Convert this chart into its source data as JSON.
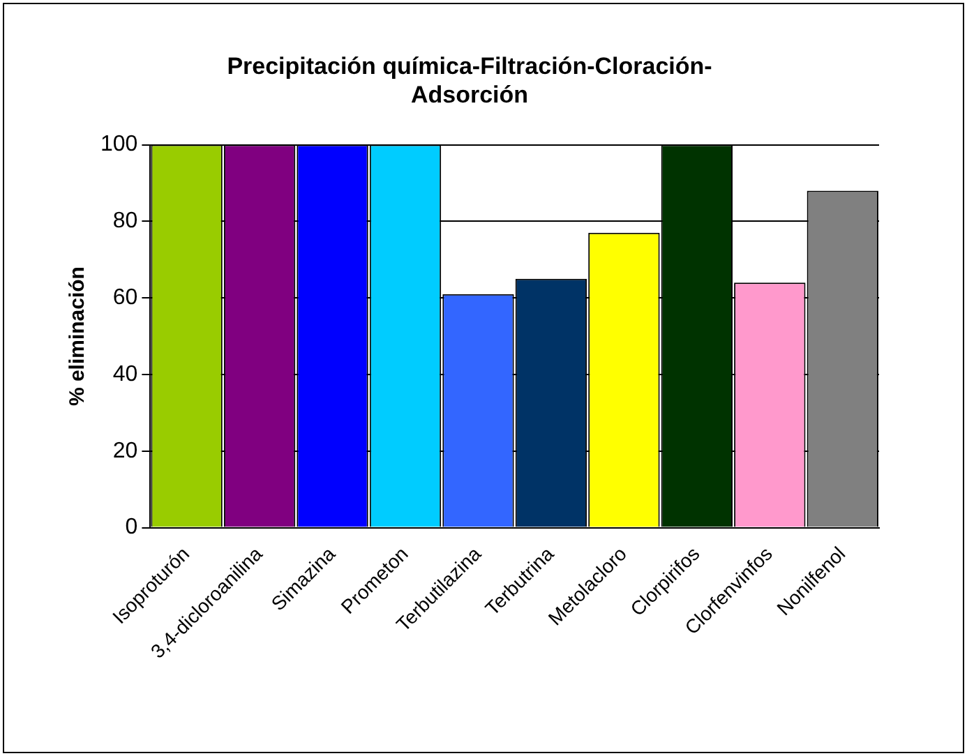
{
  "chart_data": {
    "type": "bar",
    "title": [
      "Precipitación química-Filtración-Cloración-",
      "Adsorción"
    ],
    "ylabel": "% eliminación",
    "categories": [
      "Isoproturón",
      "3,4-dicloroanilina",
      "Simazina",
      "Prometon",
      "Terbutilazina",
      "Terbutrina",
      "Metolacloro",
      "Clorpirifos",
      "Clorfenvinfos",
      "Nonilfenol"
    ],
    "values": [
      100,
      100,
      100,
      100,
      61,
      65,
      77,
      100,
      64,
      88
    ],
    "colors": [
      "#99cc00",
      "#800080",
      "#0000ff",
      "#00ccff",
      "#3366ff",
      "#003366",
      "#ffff00",
      "#003300",
      "#ff99cc",
      "#808080"
    ],
    "ylim": [
      0,
      100
    ],
    "yticks": [
      0,
      20,
      40,
      60,
      80,
      100
    ],
    "grid": "y",
    "legend": false
  }
}
